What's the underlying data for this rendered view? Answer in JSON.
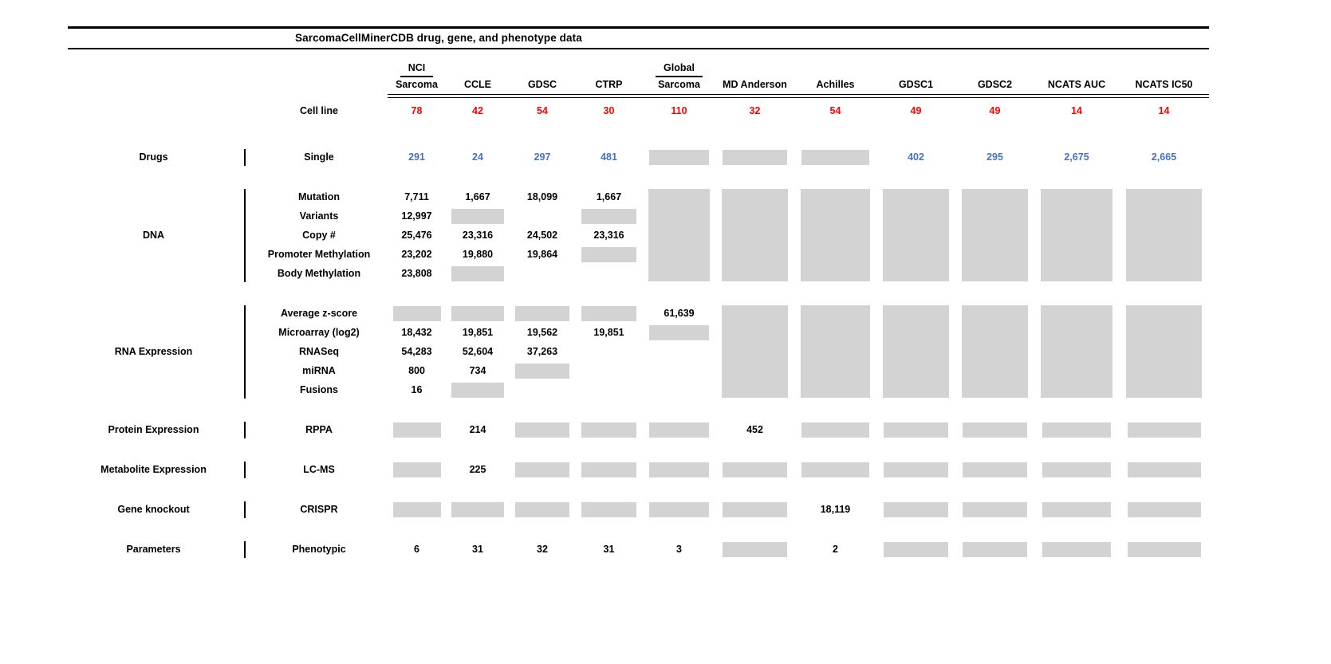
{
  "title": "SarcomaCellMinerCDB drug, gene, and phenotype data",
  "colors": {
    "cell_line_count": "#ff0000",
    "drug_count": "#4472c4",
    "na_box": "#d3d3d3"
  },
  "chart_data": {
    "type": "table",
    "title": "SarcomaCellMinerCDB drug, gene, and phenotype data",
    "na_marker": "box",
    "columns": [
      {
        "id": "nci-sarcoma",
        "lines": [
          "NCI",
          "Sarcoma"
        ]
      },
      {
        "id": "ccle",
        "lines": [
          "CCLE"
        ]
      },
      {
        "id": "gdsc",
        "lines": [
          "GDSC"
        ]
      },
      {
        "id": "ctrp",
        "lines": [
          "CTRP"
        ]
      },
      {
        "id": "global-sarcoma",
        "lines": [
          "Global",
          "Sarcoma"
        ]
      },
      {
        "id": "md-anderson",
        "lines": [
          "MD Anderson"
        ]
      },
      {
        "id": "achilles",
        "lines": [
          "Achilles"
        ]
      },
      {
        "id": "gdsc1",
        "lines": [
          "GDSC1"
        ]
      },
      {
        "id": "gdsc2",
        "lines": [
          "GDSC2"
        ]
      },
      {
        "id": "ncats-auc",
        "lines": [
          "NCATS AUC"
        ]
      },
      {
        "id": "ncats-ic50",
        "lines": [
          "NCATS IC50"
        ]
      }
    ],
    "cell_line_row": {
      "label": "Cell line",
      "values": [
        "78",
        "42",
        "54",
        "30",
        "110",
        "32",
        "54",
        "49",
        "49",
        "14",
        "14"
      ]
    },
    "groups": [
      {
        "id": "drugs",
        "category": "Drugs",
        "block_boxes": [
          false,
          false,
          false,
          false,
          false,
          false,
          false,
          false,
          false,
          false,
          false
        ],
        "rows": [
          {
            "label": "Single",
            "color": "blue",
            "cells": [
              "291",
              "24",
              "297",
              "481",
              "box",
              "box",
              "box",
              "402",
              "295",
              "2,675",
              "2,665"
            ]
          }
        ]
      },
      {
        "id": "dna",
        "category": "DNA",
        "block_boxes": [
          false,
          false,
          false,
          false,
          true,
          true,
          true,
          true,
          true,
          true,
          true
        ],
        "rows": [
          {
            "label": "Mutation",
            "cells": [
              "7,711",
              "1,667",
              "18,099",
              "1,667",
              "",
              "",
              "",
              "",
              "",
              "",
              ""
            ]
          },
          {
            "label": "Variants",
            "cells": [
              "12,997",
              "box",
              "",
              "box",
              "",
              "",
              "",
              "",
              "",
              "",
              ""
            ]
          },
          {
            "label": "Copy #",
            "cells": [
              "25,476",
              "23,316",
              "24,502",
              "23,316",
              "",
              "",
              "",
              "",
              "",
              "",
              ""
            ]
          },
          {
            "label": "Promoter Methylation",
            "cells": [
              "23,202",
              "19,880",
              "19,864",
              "box",
              "",
              "",
              "",
              "",
              "",
              "",
              ""
            ]
          },
          {
            "label": "Body Methylation",
            "cells": [
              "23,808",
              "box",
              "",
              "",
              "",
              "",
              "",
              "",
              "",
              "",
              ""
            ]
          }
        ]
      },
      {
        "id": "rna-expression",
        "category": "RNA Expression",
        "block_boxes": [
          false,
          false,
          false,
          false,
          false,
          true,
          true,
          true,
          true,
          true,
          true
        ],
        "rows": [
          {
            "label": "Average z-score",
            "cells": [
              "box",
              "box",
              "box",
              "box",
              "61,639",
              "",
              "",
              "",
              "",
              "",
              ""
            ]
          },
          {
            "label": "Microarray (log2)",
            "cells": [
              "18,432",
              "19,851",
              "19,562",
              "19,851",
              "box",
              "",
              "",
              "",
              "",
              "",
              ""
            ]
          },
          {
            "label": "RNASeq",
            "cells": [
              "54,283",
              "52,604",
              "37,263",
              "",
              "",
              "",
              "",
              "",
              "",
              "",
              ""
            ]
          },
          {
            "label": "miRNA",
            "cells": [
              "800",
              "734",
              "box",
              "",
              "",
              "",
              "",
              "",
              "",
              "",
              ""
            ]
          },
          {
            "label": "Fusions",
            "cells": [
              "16",
              "box",
              "",
              "",
              "",
              "",
              "",
              "",
              "",
              "",
              ""
            ]
          }
        ]
      },
      {
        "id": "protein-expression",
        "category": "Protein Expression",
        "block_boxes": [
          false,
          false,
          false,
          false,
          false,
          false,
          false,
          false,
          false,
          false,
          false
        ],
        "rows": [
          {
            "label": "RPPA",
            "cells": [
              "box",
              "214",
              "box",
              "box",
              "box",
              "452",
              "box",
              "box",
              "box",
              "box",
              "box"
            ]
          }
        ]
      },
      {
        "id": "metabolite-expression",
        "category": "Metabolite Expression",
        "block_boxes": [
          false,
          false,
          false,
          false,
          false,
          false,
          false,
          false,
          false,
          false,
          false
        ],
        "rows": [
          {
            "label": "LC-MS",
            "cells": [
              "box",
              "225",
              "box",
              "box",
              "box",
              "box",
              "box",
              "box",
              "box",
              "box",
              "box"
            ]
          }
        ]
      },
      {
        "id": "gene-knockout",
        "category": "Gene knockout",
        "block_boxes": [
          false,
          false,
          false,
          false,
          false,
          false,
          false,
          false,
          false,
          false,
          false
        ],
        "rows": [
          {
            "label": "CRISPR",
            "cells": [
              "box",
              "box",
              "box",
              "box",
              "box",
              "box",
              "18,119",
              "box",
              "box",
              "box",
              "box"
            ]
          }
        ]
      },
      {
        "id": "parameters",
        "category": "Parameters",
        "block_boxes": [
          false,
          false,
          false,
          false,
          false,
          false,
          false,
          false,
          false,
          false,
          false
        ],
        "rows": [
          {
            "label": "Phenotypic",
            "cells": [
              "6",
              "31",
              "32",
              "31",
              "3",
              "box",
              "2",
              "box",
              "box",
              "box",
              "box"
            ]
          }
        ]
      }
    ]
  }
}
